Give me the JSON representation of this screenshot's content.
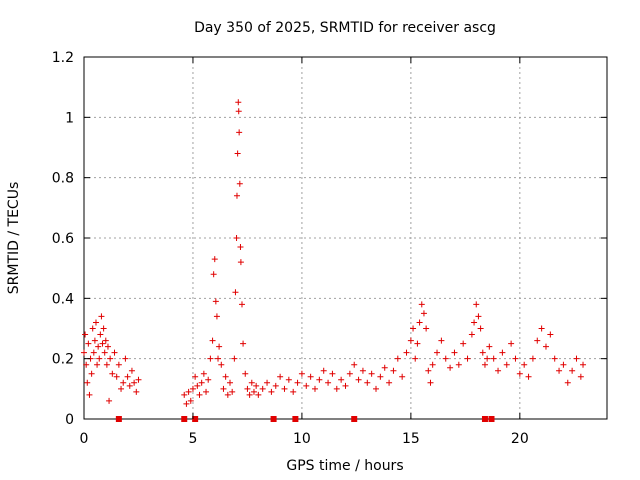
{
  "chart_data": {
    "type": "scatter",
    "title": "Day 350 of 2025, SRMTID for receiver ascg",
    "xlabel": "GPS time / hours",
    "ylabel": "SRMTID / TECUs",
    "xlim": [
      0,
      24
    ],
    "ylim": [
      0,
      1.2
    ],
    "x_ticks": [
      0,
      5,
      10,
      15,
      20
    ],
    "y_ticks": [
      0,
      0.2,
      0.4,
      0.6,
      0.8,
      1,
      1.2
    ],
    "x_tick_labels": [
      "0",
      "5",
      "10",
      "15",
      "20"
    ],
    "y_tick_labels": [
      "0",
      "0.2",
      "0.4",
      "0.6",
      "0.8",
      "1",
      "1.2"
    ],
    "grid": true,
    "marker": "+",
    "color": "#e00000",
    "series": [
      {
        "name": "SRMTID",
        "points": [
          [
            0.0,
            0.22
          ],
          [
            0.05,
            0.28
          ],
          [
            0.1,
            0.18
          ],
          [
            0.15,
            0.12
          ],
          [
            0.2,
            0.25
          ],
          [
            0.25,
            0.08
          ],
          [
            0.3,
            0.2
          ],
          [
            0.35,
            0.15
          ],
          [
            0.4,
            0.3
          ],
          [
            0.45,
            0.22
          ],
          [
            0.5,
            0.26
          ],
          [
            0.55,
            0.32
          ],
          [
            0.6,
            0.18
          ],
          [
            0.65,
            0.24
          ],
          [
            0.7,
            0.2
          ],
          [
            0.75,
            0.28
          ],
          [
            0.8,
            0.34
          ],
          [
            0.85,
            0.25
          ],
          [
            0.9,
            0.3
          ],
          [
            0.95,
            0.22
          ],
          [
            1.0,
            0.26
          ],
          [
            1.05,
            0.18
          ],
          [
            1.1,
            0.24
          ],
          [
            1.15,
            0.06
          ],
          [
            1.2,
            0.2
          ],
          [
            1.3,
            0.15
          ],
          [
            1.4,
            0.22
          ],
          [
            1.5,
            0.14
          ],
          [
            1.6,
            0.18
          ],
          [
            1.7,
            0.1
          ],
          [
            1.8,
            0.12
          ],
          [
            1.9,
            0.2
          ],
          [
            2.0,
            0.14
          ],
          [
            2.1,
            0.11
          ],
          [
            2.2,
            0.16
          ],
          [
            2.3,
            0.12
          ],
          [
            2.4,
            0.09
          ],
          [
            2.5,
            0.13
          ],
          [
            4.6,
            0.08
          ],
          [
            4.7,
            0.05
          ],
          [
            4.8,
            0.09
          ],
          [
            4.9,
            0.06
          ],
          [
            5.0,
            0.1
          ],
          [
            5.1,
            0.14
          ],
          [
            5.2,
            0.11
          ],
          [
            5.3,
            0.08
          ],
          [
            5.4,
            0.12
          ],
          [
            5.5,
            0.15
          ],
          [
            5.6,
            0.09
          ],
          [
            5.7,
            0.13
          ],
          [
            5.8,
            0.2
          ],
          [
            5.9,
            0.26
          ],
          [
            5.95,
            0.48
          ],
          [
            6.0,
            0.53
          ],
          [
            6.05,
            0.39
          ],
          [
            6.1,
            0.34
          ],
          [
            6.15,
            0.2
          ],
          [
            6.2,
            0.24
          ],
          [
            6.3,
            0.18
          ],
          [
            6.4,
            0.1
          ],
          [
            6.5,
            0.14
          ],
          [
            6.6,
            0.08
          ],
          [
            6.7,
            0.12
          ],
          [
            6.8,
            0.09
          ],
          [
            6.9,
            0.2
          ],
          [
            6.95,
            0.42
          ],
          [
            7.0,
            0.6
          ],
          [
            7.02,
            0.74
          ],
          [
            7.05,
            0.88
          ],
          [
            7.08,
            1.05
          ],
          [
            7.1,
            1.02
          ],
          [
            7.12,
            0.95
          ],
          [
            7.15,
            0.78
          ],
          [
            7.18,
            0.57
          ],
          [
            7.2,
            0.52
          ],
          [
            7.25,
            0.38
          ],
          [
            7.3,
            0.25
          ],
          [
            7.4,
            0.15
          ],
          [
            7.5,
            0.1
          ],
          [
            7.6,
            0.08
          ],
          [
            7.7,
            0.12
          ],
          [
            7.8,
            0.09
          ],
          [
            7.9,
            0.11
          ],
          [
            8.0,
            0.08
          ],
          [
            8.2,
            0.1
          ],
          [
            8.4,
            0.12
          ],
          [
            8.6,
            0.09
          ],
          [
            8.8,
            0.11
          ],
          [
            9.0,
            0.14
          ],
          [
            9.2,
            0.1
          ],
          [
            9.4,
            0.13
          ],
          [
            9.6,
            0.09
          ],
          [
            9.8,
            0.12
          ],
          [
            10.0,
            0.15
          ],
          [
            10.2,
            0.11
          ],
          [
            10.4,
            0.14
          ],
          [
            10.6,
            0.1
          ],
          [
            10.8,
            0.13
          ],
          [
            11.0,
            0.16
          ],
          [
            11.2,
            0.12
          ],
          [
            11.4,
            0.15
          ],
          [
            11.6,
            0.1
          ],
          [
            11.8,
            0.13
          ],
          [
            12.0,
            0.11
          ],
          [
            12.2,
            0.15
          ],
          [
            12.4,
            0.18
          ],
          [
            12.6,
            0.13
          ],
          [
            12.8,
            0.16
          ],
          [
            13.0,
            0.12
          ],
          [
            13.2,
            0.15
          ],
          [
            13.4,
            0.1
          ],
          [
            13.6,
            0.14
          ],
          [
            13.8,
            0.17
          ],
          [
            14.0,
            0.12
          ],
          [
            14.2,
            0.16
          ],
          [
            14.4,
            0.2
          ],
          [
            14.6,
            0.14
          ],
          [
            14.8,
            0.22
          ],
          [
            15.0,
            0.26
          ],
          [
            15.1,
            0.3
          ],
          [
            15.2,
            0.2
          ],
          [
            15.3,
            0.25
          ],
          [
            15.4,
            0.32
          ],
          [
            15.5,
            0.38
          ],
          [
            15.6,
            0.35
          ],
          [
            15.7,
            0.3
          ],
          [
            15.8,
            0.16
          ],
          [
            15.9,
            0.12
          ],
          [
            16.0,
            0.18
          ],
          [
            16.2,
            0.22
          ],
          [
            16.4,
            0.26
          ],
          [
            16.6,
            0.2
          ],
          [
            16.8,
            0.17
          ],
          [
            17.0,
            0.22
          ],
          [
            17.2,
            0.18
          ],
          [
            17.4,
            0.25
          ],
          [
            17.6,
            0.2
          ],
          [
            17.8,
            0.28
          ],
          [
            17.9,
            0.32
          ],
          [
            18.0,
            0.38
          ],
          [
            18.1,
            0.34
          ],
          [
            18.2,
            0.3
          ],
          [
            18.3,
            0.22
          ],
          [
            18.4,
            0.18
          ],
          [
            18.5,
            0.2
          ],
          [
            18.6,
            0.24
          ],
          [
            18.8,
            0.2
          ],
          [
            19.0,
            0.16
          ],
          [
            19.2,
            0.22
          ],
          [
            19.4,
            0.18
          ],
          [
            19.6,
            0.25
          ],
          [
            19.8,
            0.2
          ],
          [
            20.0,
            0.15
          ],
          [
            20.2,
            0.18
          ],
          [
            20.4,
            0.14
          ],
          [
            20.6,
            0.2
          ],
          [
            20.8,
            0.26
          ],
          [
            21.0,
            0.3
          ],
          [
            21.2,
            0.24
          ],
          [
            21.4,
            0.28
          ],
          [
            21.6,
            0.2
          ],
          [
            21.8,
            0.16
          ],
          [
            22.0,
            0.18
          ],
          [
            22.2,
            0.12
          ],
          [
            22.4,
            0.16
          ],
          [
            22.6,
            0.2
          ],
          [
            22.8,
            0.14
          ],
          [
            22.9,
            0.18
          ]
        ]
      }
    ],
    "gap_markers_x": [
      1.6,
      4.6,
      5.1,
      8.7,
      9.7,
      12.4,
      18.4,
      18.7
    ]
  }
}
